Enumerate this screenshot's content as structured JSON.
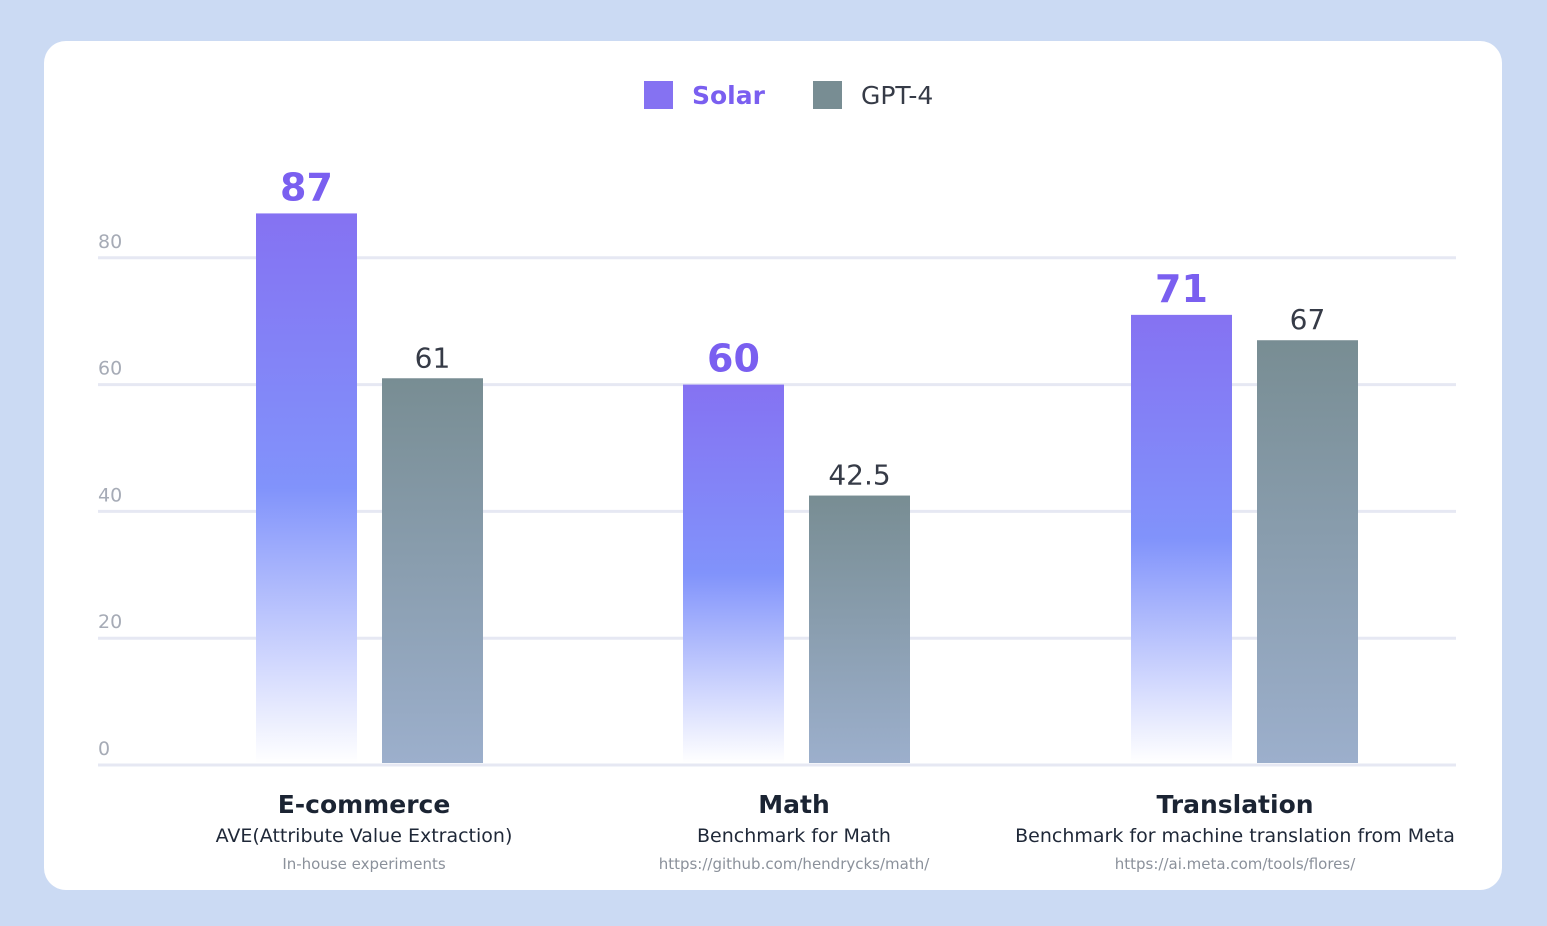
{
  "chart_data": {
    "type": "bar",
    "legend_position": "top-center",
    "categories": [
      "E-commerce",
      "Math",
      "Translation"
    ],
    "category_subtitles": [
      "AVE(Attribute Value Extraction)",
      "Benchmark for Math",
      "Benchmark for machine translation from Meta"
    ],
    "category_sources": [
      "In-house experiments",
      "https://github.com/hendrycks/math/",
      "https://ai.meta.com/tools/flores/"
    ],
    "series": [
      {
        "name": "Solar",
        "values": [
          87,
          60,
          71
        ],
        "labels": [
          "87",
          "60",
          "71"
        ]
      },
      {
        "name": "GPT-4",
        "values": [
          61,
          42.5,
          67
        ],
        "labels": [
          "61",
          "42.5",
          "67"
        ]
      }
    ],
    "yticks": [
      0,
      20,
      40,
      60,
      80
    ],
    "ytick_labels": [
      "0",
      "20",
      "40",
      "60",
      "80"
    ],
    "ylim": [
      0,
      100
    ],
    "grid": true
  },
  "colors": {
    "solar_top": "#8572f2",
    "solar_mid": "#8193fb",
    "solar_bottom": "#ffffff",
    "gpt4_top": "#788d93",
    "gpt4_bottom": "#9cafcc",
    "solar_label": "#7a5ff0",
    "gpt4_label": "#363b47",
    "grid": "#e6e8f3",
    "tick": "#a6abb6",
    "background": "#cbdaf3"
  }
}
